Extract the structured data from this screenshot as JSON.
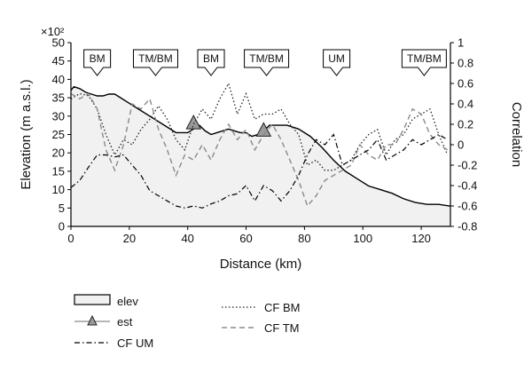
{
  "chart_data": {
    "type": "line",
    "xlabel": "Distance (km)",
    "ylabel_left": "Elevation (m a.s.l.)",
    "ylabel_left_multiplier": "×10²",
    "ylabel_right": "Correlation",
    "xlim": [
      0,
      130
    ],
    "ylim_left": [
      0,
      50
    ],
    "ylim_right": [
      -0.8,
      1.0
    ],
    "x_ticks": [
      0,
      20,
      40,
      60,
      80,
      100,
      120
    ],
    "y_left_ticks": [
      0,
      5,
      10,
      15,
      20,
      25,
      30,
      35,
      40,
      45,
      50
    ],
    "y_right_ticks": [
      "-0.8",
      "-0.6",
      "-0.4",
      "-0.2",
      "0",
      "0.2",
      "0.4",
      "0.6",
      "0.8",
      "1"
    ],
    "grid": false,
    "zones": [
      {
        "label": "BM",
        "x": 9
      },
      {
        "label": "TM/BM",
        "x": 29
      },
      {
        "label": "BM",
        "x": 48
      },
      {
        "label": "TM/BM",
        "x": 67
      },
      {
        "label": "UM",
        "x": 91
      },
      {
        "label": "TM/BM",
        "x": 121
      }
    ],
    "series": [
      {
        "name": "elev",
        "axis": "left",
        "style": "solid-filled",
        "x": [
          0,
          1,
          3,
          5,
          7,
          9,
          11,
          13,
          15,
          17,
          20,
          24,
          28,
          32,
          36,
          40,
          42,
          44,
          46,
          48,
          50,
          52,
          54,
          56,
          58,
          60,
          62,
          64,
          66,
          68,
          70,
          74,
          78,
          82,
          86,
          90,
          94,
          98,
          102,
          106,
          110,
          114,
          118,
          122,
          126,
          130
        ],
        "values": [
          37,
          38,
          37.5,
          36.5,
          36,
          35.5,
          35.5,
          36,
          36,
          35,
          33.5,
          31.5,
          29.5,
          27.5,
          25.5,
          25.5,
          26.5,
          27.5,
          26,
          25,
          25.5,
          26,
          26.5,
          26,
          25.5,
          25.5,
          24.5,
          25,
          26,
          27.5,
          27.5,
          27.5,
          26.5,
          24.5,
          21.5,
          18,
          15,
          13,
          11,
          10,
          9,
          7.5,
          6.5,
          6,
          6,
          5.5
        ]
      },
      {
        "name": "est",
        "axis": "left",
        "style": "triangle-markers",
        "x": [
          42,
          66
        ],
        "values": [
          28,
          26
        ]
      },
      {
        "name": "CF BM",
        "axis": "right",
        "style": "dotted",
        "x": [
          0,
          3,
          6,
          9,
          12,
          15,
          18,
          21,
          24,
          27,
          30,
          33,
          36,
          39,
          42,
          45,
          48,
          51,
          54,
          57,
          60,
          63,
          66,
          69,
          72,
          75,
          78,
          81,
          84,
          87,
          90,
          93,
          96,
          99,
          102,
          105,
          108,
          111,
          114,
          117,
          120,
          123,
          126,
          129
        ],
        "values": [
          0.45,
          0.5,
          0.48,
          0.35,
          0.1,
          -0.1,
          0.05,
          0.0,
          0.15,
          0.25,
          0.38,
          0.25,
          0.05,
          -0.05,
          0.2,
          0.35,
          0.25,
          0.45,
          0.6,
          0.3,
          0.5,
          0.25,
          0.3,
          0.3,
          0.35,
          0.2,
          0.1,
          -0.2,
          -0.15,
          -0.25,
          -0.25,
          -0.2,
          -0.15,
          0.0,
          0.1,
          0.15,
          -0.1,
          0.05,
          0.1,
          0.25,
          0.3,
          0.35,
          0.1,
          -0.1
        ]
      },
      {
        "name": "CF TM",
        "axis": "right",
        "style": "dashed",
        "x": [
          0,
          3,
          6,
          9,
          12,
          15,
          18,
          21,
          24,
          27,
          30,
          33,
          36,
          39,
          42,
          45,
          48,
          51,
          54,
          57,
          60,
          63,
          66,
          69,
          72,
          75,
          78,
          81,
          84,
          87,
          90,
          93,
          96,
          99,
          102,
          105,
          108,
          111,
          114,
          117,
          120,
          123,
          126,
          129
        ],
        "values": [
          0.5,
          0.45,
          0.5,
          0.35,
          -0.05,
          -0.25,
          0.0,
          0.4,
          0.35,
          0.45,
          0.15,
          -0.05,
          -0.3,
          -0.1,
          -0.15,
          0.0,
          -0.15,
          0.05,
          0.2,
          0.05,
          0.15,
          -0.05,
          0.1,
          0.2,
          0.05,
          -0.15,
          -0.35,
          -0.6,
          -0.5,
          -0.35,
          -0.3,
          -0.25,
          -0.2,
          0.0,
          -0.1,
          -0.15,
          0.0,
          0.0,
          0.15,
          0.35,
          0.3,
          0.1,
          0.0,
          -0.05
        ]
      },
      {
        "name": "CF UM",
        "axis": "right",
        "style": "dash-dot",
        "x": [
          0,
          3,
          6,
          9,
          12,
          15,
          18,
          21,
          24,
          27,
          30,
          33,
          36,
          39,
          42,
          45,
          48,
          51,
          54,
          57,
          60,
          63,
          66,
          69,
          72,
          75,
          78,
          81,
          84,
          87,
          90,
          93,
          96,
          99,
          102,
          105,
          108,
          111,
          114,
          117,
          120,
          123,
          126,
          129
        ],
        "values": [
          -0.42,
          -0.35,
          -0.22,
          -0.1,
          -0.1,
          -0.12,
          -0.1,
          -0.2,
          -0.3,
          -0.45,
          -0.5,
          -0.55,
          -0.6,
          -0.62,
          -0.6,
          -0.62,
          -0.58,
          -0.55,
          -0.5,
          -0.48,
          -0.4,
          -0.55,
          -0.4,
          -0.45,
          -0.55,
          -0.45,
          -0.3,
          -0.1,
          0.05,
          0.0,
          0.1,
          -0.2,
          -0.15,
          -0.1,
          -0.05,
          0.05,
          -0.15,
          -0.1,
          -0.05,
          0.05,
          0.0,
          0.05,
          0.1,
          0.05
        ]
      }
    ],
    "legend": {
      "placement": "bottom",
      "entries": [
        "elev",
        "est",
        "CF UM",
        "CF BM",
        "CF TM"
      ]
    }
  }
}
